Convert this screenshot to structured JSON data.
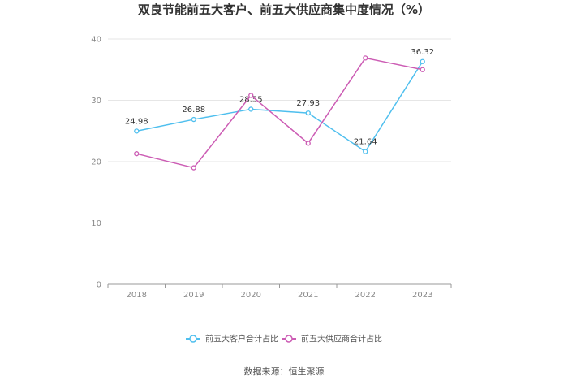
{
  "chart_data": {
    "type": "line",
    "title": "双良节能前五大客户、前五大供应商集中度情况（%）",
    "xlabel": "",
    "ylabel": "",
    "categories": [
      "2018",
      "2019",
      "2020",
      "2021",
      "2022",
      "2023"
    ],
    "ylim": [
      0,
      40
    ],
    "yticks": [
      "0",
      "10",
      "20",
      "30",
      "40"
    ],
    "grid": true,
    "legend_position": "bottom",
    "series": [
      {
        "name": "前五大客户合计占比",
        "color": "#4fbfee",
        "values": [
          24.98,
          26.88,
          28.55,
          27.93,
          21.64,
          36.32
        ],
        "labels": [
          "24.98",
          "26.88",
          "28.55",
          "27.93",
          "21.64",
          "36.32"
        ]
      },
      {
        "name": "前五大供应商合计占比",
        "color": "#cc5cb4",
        "values": [
          21.3,
          19.0,
          30.8,
          23.0,
          36.9,
          35.0
        ],
        "labels": []
      }
    ],
    "source": "数据来源：恒生聚源"
  }
}
